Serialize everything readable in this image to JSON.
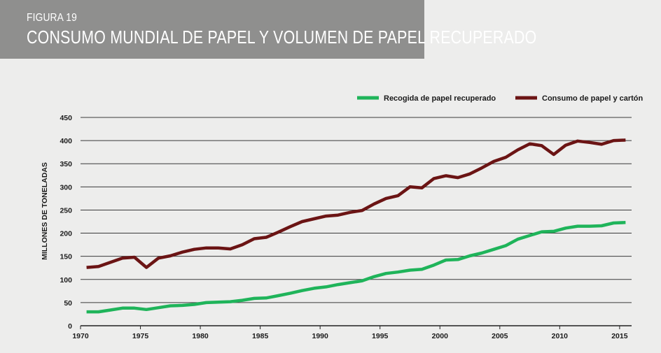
{
  "header": {
    "figure_number": "FIGURA 19",
    "title": "CONSUMO MUNDIAL DE PAPEL Y VOLUMEN DE PAPEL RECUPERADO"
  },
  "colors": {
    "header_bg": "#8f8f8e",
    "background": "#ededec",
    "recovered": "#1fb45a",
    "consumption": "#6b1414"
  },
  "chart_data": {
    "type": "line",
    "title": "CONSUMO MUNDIAL DE PAPEL Y VOLUMEN DE PAPEL RECUPERADO",
    "xlabel": "",
    "ylabel": "MILLONES DE TONELADAS",
    "xlim": [
      1970,
      2016
    ],
    "ylim": [
      0,
      450
    ],
    "x_ticks": [
      1970,
      1975,
      1980,
      1985,
      1990,
      1995,
      2000,
      2005,
      2010,
      2015
    ],
    "y_ticks": [
      0,
      50,
      100,
      150,
      200,
      250,
      300,
      350,
      400,
      450
    ],
    "grid": "horizontal",
    "legend_position": "top-right",
    "x": [
      1970,
      1971,
      1972,
      1973,
      1974,
      1975,
      1976,
      1977,
      1978,
      1979,
      1980,
      1981,
      1982,
      1983,
      1984,
      1985,
      1986,
      1987,
      1988,
      1989,
      1990,
      1991,
      1992,
      1993,
      1994,
      1995,
      1996,
      1997,
      1998,
      1999,
      2000,
      2001,
      2002,
      2003,
      2004,
      2005,
      2006,
      2007,
      2008,
      2009,
      2010,
      2011,
      2012,
      2013,
      2014,
      2015
    ],
    "series": [
      {
        "name": "Recogida de papel recuperado",
        "color": "#1fb45a",
        "values": [
          30,
          30,
          34,
          38,
          38,
          35,
          39,
          43,
          44,
          46,
          50,
          51,
          52,
          55,
          59,
          60,
          65,
          70,
          76,
          81,
          84,
          89,
          93,
          97,
          106,
          113,
          116,
          120,
          122,
          131,
          142,
          143,
          151,
          157,
          165,
          173,
          187,
          195,
          203,
          204,
          211,
          215,
          215,
          216,
          222,
          223
        ]
      },
      {
        "name": "Consumo de papel y cartón",
        "color": "#6b1414",
        "values": [
          126,
          128,
          137,
          146,
          148,
          126,
          146,
          151,
          159,
          165,
          168,
          168,
          166,
          175,
          188,
          191,
          202,
          214,
          225,
          231,
          237,
          239,
          245,
          249,
          263,
          275,
          281,
          300,
          298,
          318,
          324,
          320,
          328,
          341,
          355,
          364,
          380,
          393,
          389,
          370,
          390,
          399,
          396,
          392,
          400,
          401
        ]
      }
    ]
  }
}
